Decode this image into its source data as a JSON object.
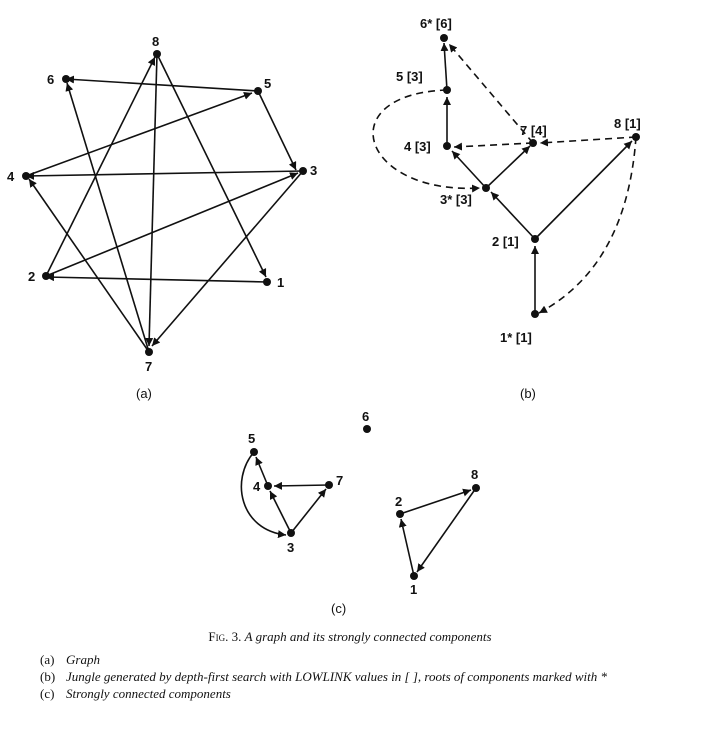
{
  "panels": [
    {
      "id": "a",
      "label": "(a)",
      "nodes": [
        {
          "id": "n8",
          "text": "8"
        },
        {
          "id": "n6",
          "text": "6"
        },
        {
          "id": "n5",
          "text": "5"
        },
        {
          "id": "n4",
          "text": "4"
        },
        {
          "id": "n3",
          "text": "3"
        },
        {
          "id": "n2",
          "text": "2"
        },
        {
          "id": "n1",
          "text": "1"
        },
        {
          "id": "n7",
          "text": "7"
        }
      ],
      "edges": [
        {
          "from": "n5",
          "to": "n6",
          "style": "solid"
        },
        {
          "from": "n5",
          "to": "n3",
          "style": "solid"
        },
        {
          "from": "n3",
          "to": "n4",
          "style": "solid"
        },
        {
          "from": "n4",
          "to": "n5",
          "style": "solid"
        },
        {
          "from": "n2",
          "to": "n3",
          "style": "solid"
        },
        {
          "from": "n1",
          "to": "n2",
          "style": "solid"
        },
        {
          "from": "n8",
          "to": "n1",
          "style": "solid"
        },
        {
          "from": "n2",
          "to": "n8",
          "style": "solid"
        },
        {
          "from": "n8",
          "to": "n7",
          "style": "solid"
        },
        {
          "from": "n7",
          "to": "n6",
          "style": "solid"
        },
        {
          "from": "n7",
          "to": "n4",
          "style": "solid"
        },
        {
          "from": "n3",
          "to": "n7",
          "style": "solid"
        }
      ]
    },
    {
      "id": "b",
      "label": "(b)",
      "nodes": [
        {
          "id": "n6",
          "text": "6* [6]"
        },
        {
          "id": "n5",
          "text": "5 [3]"
        },
        {
          "id": "n7",
          "text": "7 [4]"
        },
        {
          "id": "n8",
          "text": "8 [1]"
        },
        {
          "id": "n4",
          "text": "4 [3]"
        },
        {
          "id": "n3",
          "text": "3* [3]"
        },
        {
          "id": "n2",
          "text": "2 [1]"
        },
        {
          "id": "n1",
          "text": "1* [1]"
        }
      ],
      "edges": [
        {
          "from": "n1",
          "to": "n2",
          "style": "solid"
        },
        {
          "from": "n2",
          "to": "n3",
          "style": "solid"
        },
        {
          "from": "n2",
          "to": "n8",
          "style": "solid"
        },
        {
          "from": "n3",
          "to": "n4",
          "style": "solid"
        },
        {
          "from": "n3",
          "to": "n7",
          "style": "solid"
        },
        {
          "from": "n4",
          "to": "n5",
          "style": "solid"
        },
        {
          "from": "n5",
          "to": "n6",
          "style": "solid"
        },
        {
          "from": "n7",
          "to": "n6",
          "style": "dashed"
        },
        {
          "from": "n7",
          "to": "n4",
          "style": "dashed"
        },
        {
          "from": "n8",
          "to": "n7",
          "style": "dashed"
        },
        {
          "from": "n5",
          "to": "n3",
          "style": "dashed"
        },
        {
          "from": "n8",
          "to": "n1",
          "style": "dashed"
        }
      ]
    },
    {
      "id": "c",
      "label": "(c)",
      "nodes": [
        {
          "id": "n6",
          "text": "6"
        },
        {
          "id": "n5",
          "text": "5"
        },
        {
          "id": "n4",
          "text": "4"
        },
        {
          "id": "n7",
          "text": "7"
        },
        {
          "id": "n3",
          "text": "3"
        },
        {
          "id": "n8",
          "text": "8"
        },
        {
          "id": "n2",
          "text": "2"
        },
        {
          "id": "n1",
          "text": "1"
        }
      ],
      "edges": [
        {
          "from": "n3",
          "to": "n4",
          "style": "solid"
        },
        {
          "from": "n4",
          "to": "n5",
          "style": "solid"
        },
        {
          "from": "n5",
          "to": "n3",
          "style": "solid"
        },
        {
          "from": "n7",
          "to": "n4",
          "style": "solid"
        },
        {
          "from": "n3",
          "to": "n7",
          "style": "solid"
        },
        {
          "from": "n2",
          "to": "n8",
          "style": "solid"
        },
        {
          "from": "n8",
          "to": "n1",
          "style": "solid"
        },
        {
          "from": "n1",
          "to": "n2",
          "style": "solid"
        }
      ]
    }
  ],
  "caption": {
    "fig_number": "Fig. 3.",
    "title": "A graph and its strongly connected components",
    "items": [
      {
        "tag": "(a)",
        "text": "Graph"
      },
      {
        "tag": "(b)",
        "text": "Jungle generated by depth-first search with LOWLINK values in [ ], roots of components marked with *"
      },
      {
        "tag": "(c)",
        "text": "Strongly connected components"
      }
    ]
  }
}
